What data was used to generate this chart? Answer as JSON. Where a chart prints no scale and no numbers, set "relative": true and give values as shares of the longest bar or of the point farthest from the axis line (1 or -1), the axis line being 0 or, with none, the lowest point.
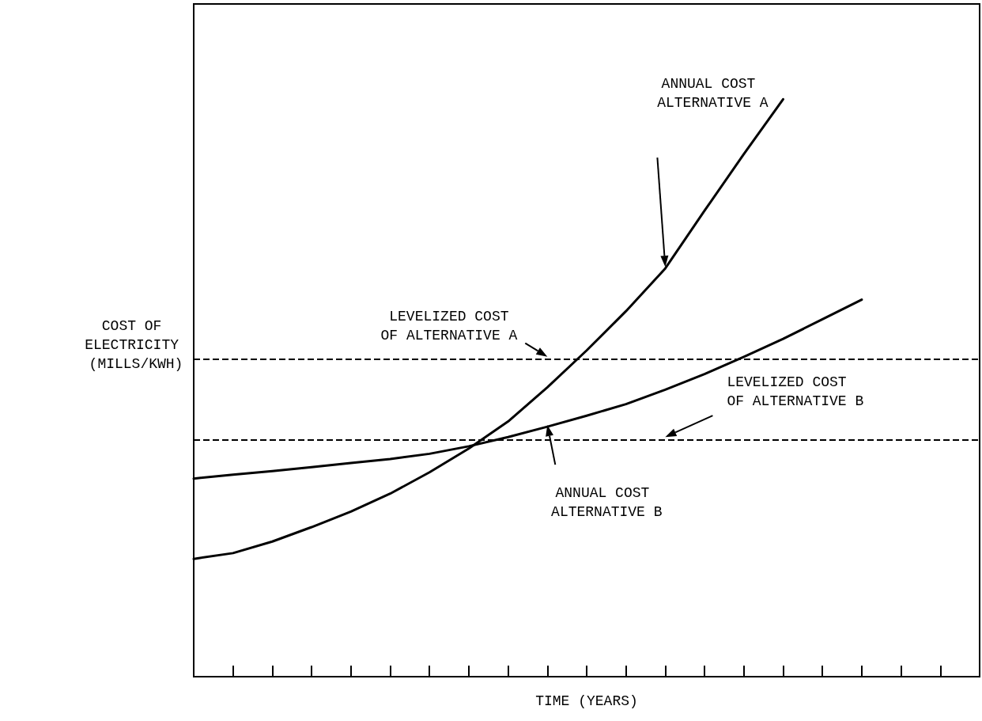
{
  "chart_data": {
    "type": "line",
    "relative": true,
    "xlabel": "TIME (YEARS)",
    "ylabel": "COST OF ELECTRICITY (MILLS/KWH)",
    "categories": [
      null,
      null,
      null,
      null,
      null,
      null,
      null,
      null,
      null,
      null,
      null,
      null,
      null,
      null,
      null,
      null,
      null,
      null,
      null,
      null,
      null
    ],
    "series": [
      {
        "color": "#000000",
        "values": [
          0.204,
          0.214,
          0.234,
          0.259,
          0.286,
          0.317,
          0.354,
          0.395,
          0.442,
          0.501,
          0.565,
          0.633,
          0.707,
          0.807,
          0.905,
          1,
          null,
          null,
          null,
          null,
          null
        ]
      },
      {
        "color": "#000000",
        "values": [
          0.343,
          0.35,
          0.356,
          0.363,
          0.37,
          0.377,
          0.386,
          0.399,
          0.415,
          0.433,
          0.452,
          0.472,
          0.497,
          0.524,
          0.554,
          0.585,
          0.619,
          0.653,
          null,
          null,
          null
        ]
      }
    ],
    "ref_lines": [
      {
        "axis": "y",
        "value": 0.55,
        "label": "LEVELIZED COST OF ALTERNATIVE A",
        "color": "#000000",
        "line_style": "dashed"
      },
      {
        "axis": "y",
        "value": 0.411,
        "label": "LEVELIZED COST OF ALTERNATIVE B",
        "color": "#000000",
        "line_style": "dashed"
      }
    ],
    "annotations": [
      "ANNUAL COST ALTERNATIVE A",
      "ANNUAL COST ALTERNATIVE B"
    ],
    "grid": false,
    "marker": "none",
    "line_style": "solid"
  }
}
